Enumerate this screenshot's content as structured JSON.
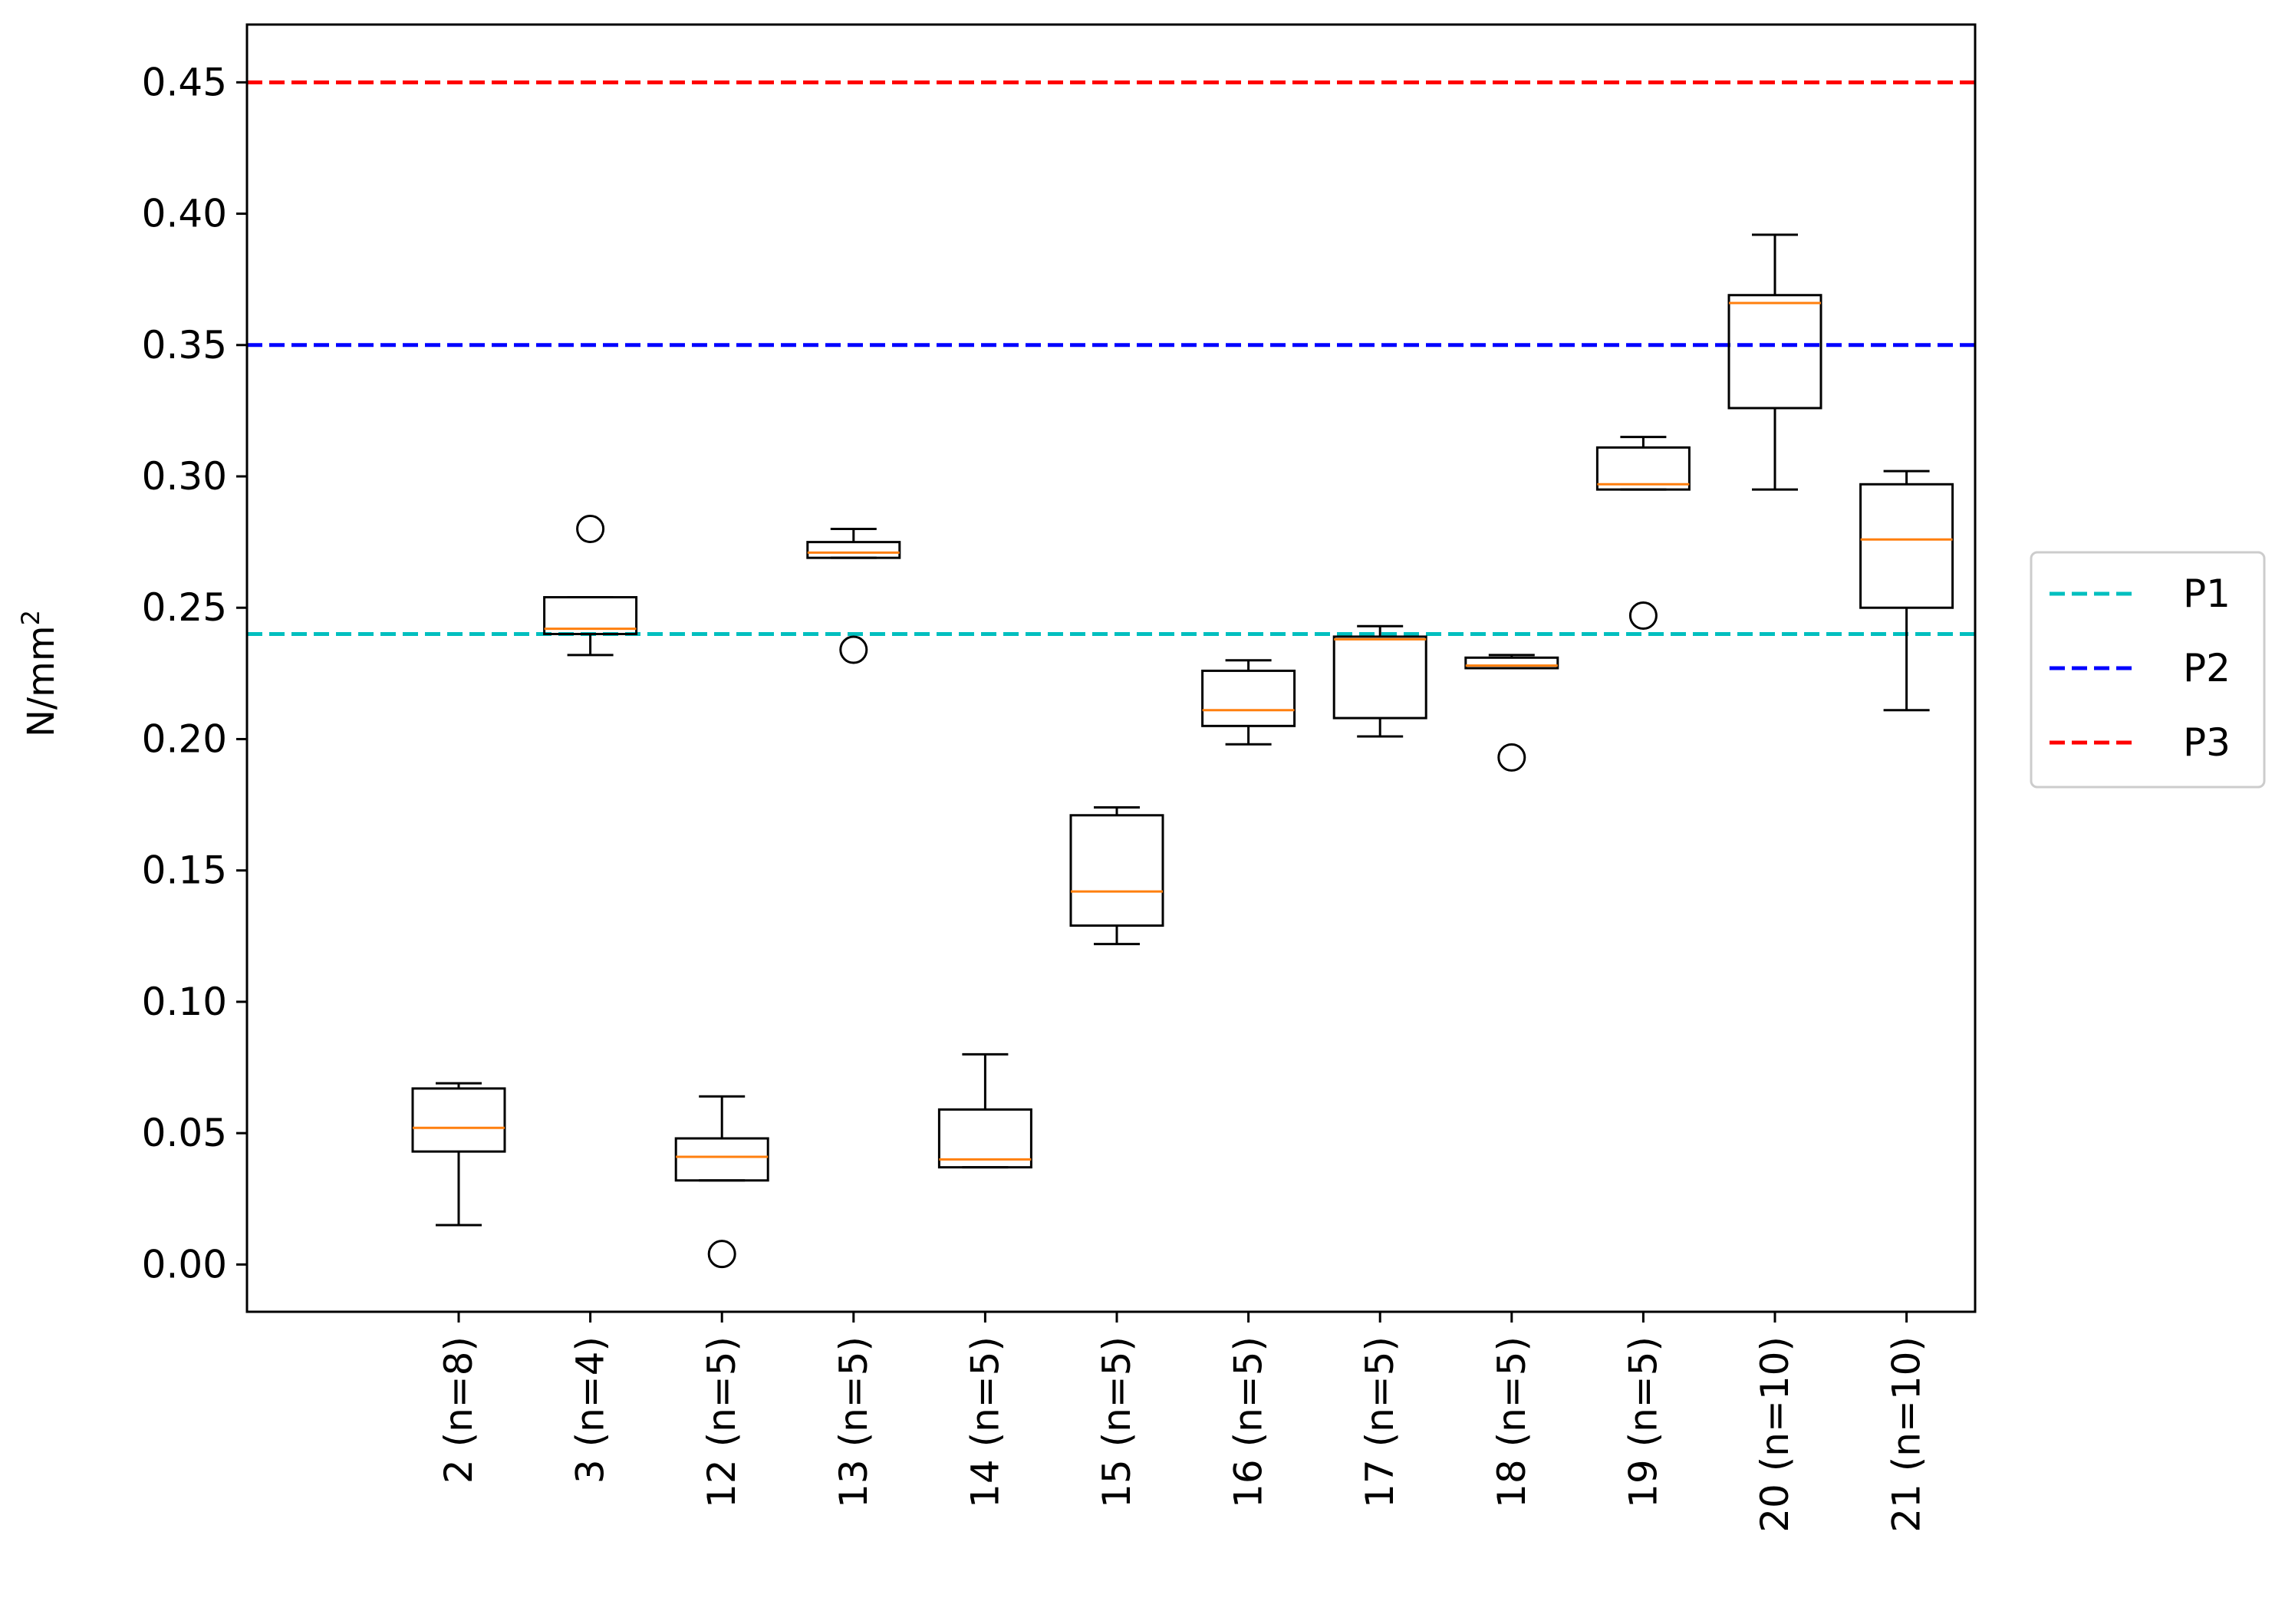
{
  "chart_data": {
    "type": "box",
    "title": "",
    "xlabel": "",
    "ylabel": "N/mm",
    "ylabel_superscript": "2",
    "ylim": [
      -0.018,
      0.472
    ],
    "yticks": [
      0.0,
      0.05,
      0.1,
      0.15,
      0.2,
      0.25,
      0.3,
      0.35,
      0.4,
      0.45
    ],
    "ytick_labels": [
      "0.00",
      "0.05",
      "0.10",
      "0.15",
      "0.20",
      "0.25",
      "0.30",
      "0.35",
      "0.40",
      "0.45"
    ],
    "grid": false,
    "categories": [
      "2 (n=8)",
      "3 (n=4)",
      "12 (n=5)",
      "13 (n=5)",
      "14 (n=5)",
      "15 (n=5)",
      "16 (n=5)",
      "17 (n=5)",
      "18 (n=5)",
      "19 (n=5)",
      "20 (n=10)",
      "21 (n=10)"
    ],
    "boxes": [
      {
        "whislo": 0.015,
        "q1": 0.043,
        "med": 0.052,
        "q3": 0.067,
        "whishi": 0.069,
        "fliers": []
      },
      {
        "whislo": 0.232,
        "q1": 0.24,
        "med": 0.242,
        "q3": 0.254,
        "whishi": 0.254,
        "fliers": [
          0.28
        ]
      },
      {
        "whislo": 0.032,
        "q1": 0.032,
        "med": 0.041,
        "q3": 0.048,
        "whishi": 0.064,
        "fliers": [
          0.004
        ]
      },
      {
        "whislo": 0.269,
        "q1": 0.269,
        "med": 0.271,
        "q3": 0.275,
        "whishi": 0.28,
        "fliers": [
          0.234
        ]
      },
      {
        "whislo": 0.037,
        "q1": 0.037,
        "med": 0.04,
        "q3": 0.059,
        "whishi": 0.08,
        "fliers": []
      },
      {
        "whislo": 0.122,
        "q1": 0.129,
        "med": 0.142,
        "q3": 0.171,
        "whishi": 0.174,
        "fliers": []
      },
      {
        "whislo": 0.198,
        "q1": 0.205,
        "med": 0.211,
        "q3": 0.226,
        "whishi": 0.23,
        "fliers": []
      },
      {
        "whislo": 0.201,
        "q1": 0.208,
        "med": 0.238,
        "q3": 0.239,
        "whishi": 0.243,
        "fliers": []
      },
      {
        "whislo": 0.227,
        "q1": 0.227,
        "med": 0.228,
        "q3": 0.231,
        "whishi": 0.232,
        "fliers": [
          0.193
        ]
      },
      {
        "whislo": 0.295,
        "q1": 0.295,
        "med": 0.297,
        "q3": 0.311,
        "whishi": 0.315,
        "fliers": [
          0.247
        ]
      },
      {
        "whislo": 0.295,
        "q1": 0.326,
        "med": 0.366,
        "q3": 0.369,
        "whishi": 0.392,
        "fliers": []
      },
      {
        "whislo": 0.211,
        "q1": 0.25,
        "med": 0.276,
        "q3": 0.297,
        "whishi": 0.302,
        "fliers": []
      }
    ],
    "reference_lines": [
      {
        "name": "P1",
        "y": 0.24,
        "color": "#00bfbf",
        "style": "dashed"
      },
      {
        "name": "P2",
        "y": 0.35,
        "color": "#0000ff",
        "style": "dashed"
      },
      {
        "name": "P3",
        "y": 0.45,
        "color": "#ff0000",
        "style": "dashed"
      }
    ],
    "legend": {
      "placement": "center-right outside",
      "entries": [
        "P1",
        "P2",
        "P3"
      ]
    },
    "colors": {
      "box": "#000000",
      "median": "#ff7f0e"
    }
  }
}
